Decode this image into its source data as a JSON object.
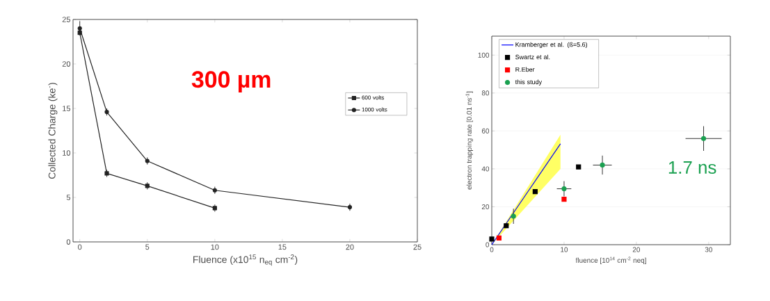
{
  "chart_data": [
    {
      "type": "line",
      "xlabel": "Fluence (x10$^{15}$ n$_{eq}$ cm$^{-2}$)",
      "ylabel": "Collected Charge (ke$^{-}$)",
      "annotations": [
        "300 µm"
      ],
      "xlim": [
        -0.5,
        25
      ],
      "xticks": [
        0,
        5,
        10,
        15,
        20,
        25
      ],
      "ylim": [
        0,
        25
      ],
      "yticks": [
        0,
        5,
        10,
        15,
        20,
        25
      ],
      "legend": "right",
      "grid": false,
      "series": [
        {
          "name": "600 volts",
          "color": "#222222",
          "marker": "square",
          "x": [
            0,
            2,
            5,
            10
          ],
          "values": [
            23.5,
            7.7,
            6.3,
            3.8
          ],
          "errors": [
            null,
            0.4,
            0.4,
            0.4
          ]
        },
        {
          "name": "1000 volts",
          "color": "#222222",
          "marker": "circle",
          "x": [
            0,
            2,
            5,
            10,
            20
          ],
          "values": [
            24,
            14.6,
            9.1,
            5.8,
            3.9
          ],
          "errors": [
            0.8,
            0.4,
            0.4,
            0.4,
            0.4
          ]
        }
      ]
    },
    {
      "type": "scatter",
      "xlabel": "fluence [10$^{14}$ cm$^{-2}$ neq]",
      "ylabel": "electron trapping rate [0.01 ns$^{-1}$]",
      "annotations": [
        "1.7 ns"
      ],
      "xlim": [
        0,
        33
      ],
      "xticks": [
        0,
        10,
        20,
        30
      ],
      "ylim": [
        0,
        110
      ],
      "yticks": [
        0,
        20,
        40,
        60,
        80,
        100
      ],
      "legend": "top left",
      "grid": "y",
      "series": [
        {
          "name": "Kramberger et al. (ß=5.6)",
          "type": "line",
          "color": "#0000ff",
          "marker": "none",
          "x": [
            0,
            9.5
          ],
          "values": [
            0,
            53.2
          ],
          "lower": [
            0,
            40
          ],
          "upper": [
            0,
            58
          ]
        },
        {
          "name": "Swartz et al.",
          "color": "#000000",
          "marker": "square",
          "x": [
            0,
            2,
            6,
            12
          ],
          "values": [
            3,
            10,
            28,
            41
          ]
        },
        {
          "name": "R.Eber",
          "color": "#ff0000",
          "marker": "square",
          "x": [
            1,
            10
          ],
          "values": [
            3.5,
            24
          ]
        },
        {
          "name": "this study",
          "color": "#1aa050",
          "marker": "circle",
          "x": [
            3,
            10,
            15.3,
            29.3
          ],
          "values": [
            15,
            29.5,
            42,
            56
          ],
          "errors": [
            4,
            4,
            5,
            6.5
          ],
          "xerrors": [
            0.3,
            1,
            1.3,
            2.5
          ]
        }
      ]
    }
  ]
}
